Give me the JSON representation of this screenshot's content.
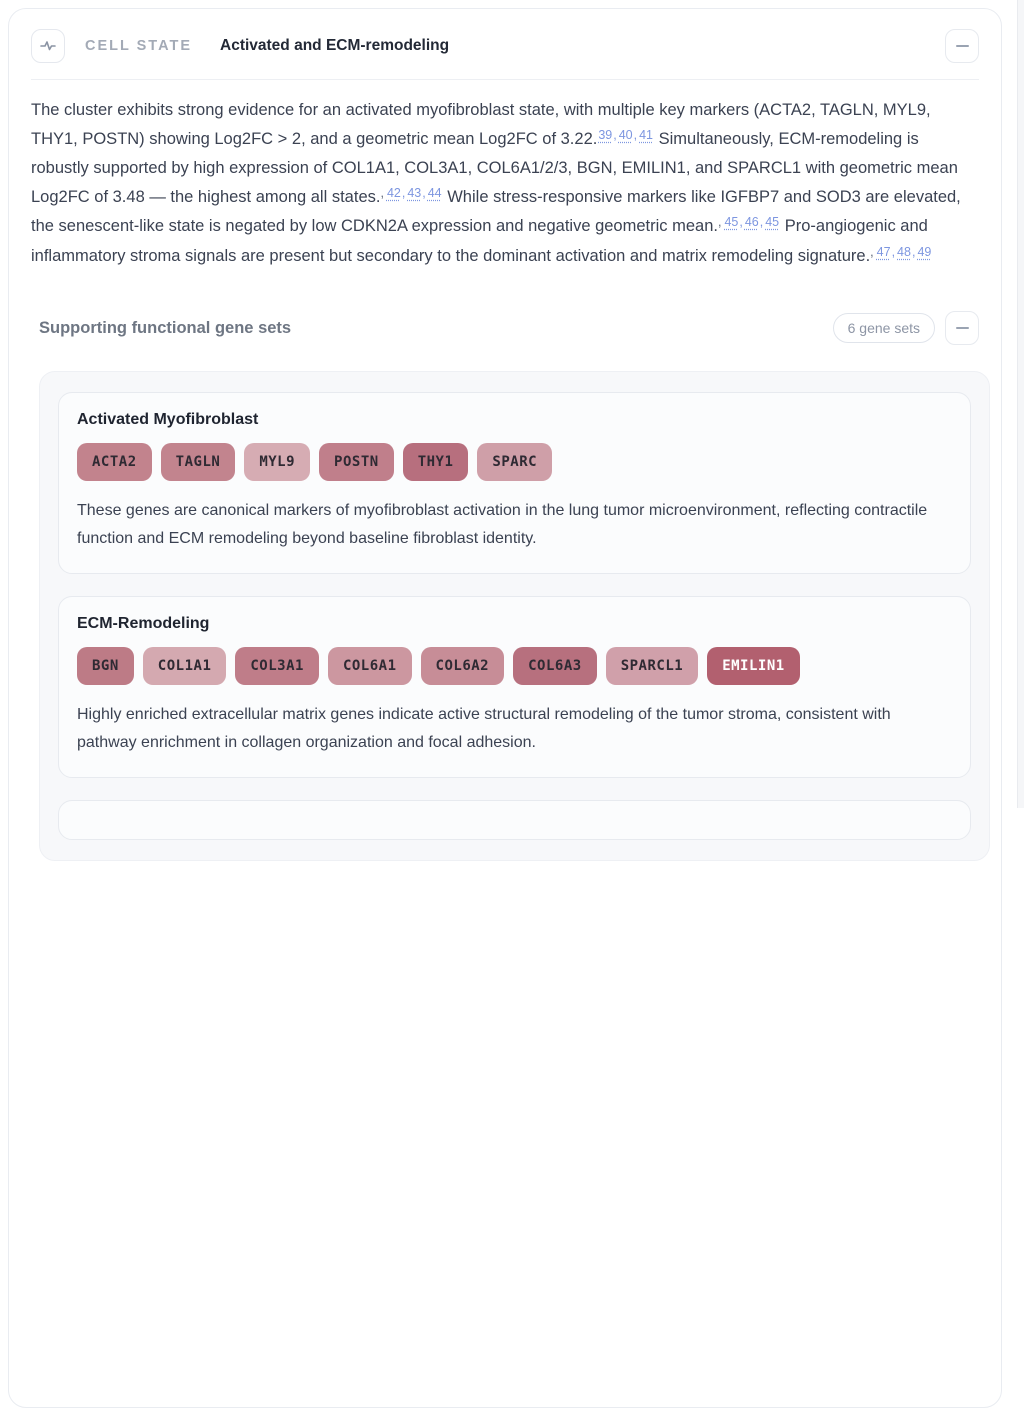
{
  "header": {
    "label": "CELL STATE",
    "title": "Activated and ECM-remodeling"
  },
  "summary": {
    "segments": [
      {
        "text": "The cluster exhibits strong evidence for an activated myofibroblast state, with multiple key markers (ACTA2, TAGLN, MYL9, THY1, POSTN) showing Log2FC > 2, and a geometric mean Log2FC of 3.22.",
        "leading_mark": false,
        "citations": [
          "39",
          "40",
          "41"
        ]
      },
      {
        "text": " Simultaneously, ECM-remodeling is robustly supported by high expression of COL1A1, COL3A1, COL6A1/2/3, BGN, EMILIN1, and SPARCL1 with geometric mean Log2FC of 3.48 — the highest among all states.",
        "leading_mark": true,
        "citations": [
          "42",
          "43",
          "44"
        ]
      },
      {
        "text": " While stress-responsive markers like IGFBP7 and SOD3 are elevated, the senescent-like state is negated by low CDKN2A expression and negative geometric mean.",
        "leading_mark": true,
        "citations": [
          "45",
          "46",
          "45"
        ]
      },
      {
        "text": " Pro-angiogenic and inflammatory stroma signals are present but secondary to the dominant activation and matrix remodeling signature.",
        "leading_mark": true,
        "citations": [
          "47",
          "48",
          "49"
        ]
      }
    ]
  },
  "gene_sets_section": {
    "title": "Supporting functional gene sets",
    "badge": "6 gene sets"
  },
  "gene_sets": [
    {
      "title": "Activated Myofibroblast",
      "genes": [
        {
          "name": "ACTA2",
          "bg": "#c2838d",
          "fg": "#2f2a33"
        },
        {
          "name": "TAGLN",
          "bg": "#c2848e",
          "fg": "#2f2a33"
        },
        {
          "name": "MYL9",
          "bg": "#d6acb3",
          "fg": "#2f2a33"
        },
        {
          "name": "POSTN",
          "bg": "#c07f8b",
          "fg": "#2f2a33"
        },
        {
          "name": "THY1",
          "bg": "#b76f7e",
          "fg": "#2f2a33"
        },
        {
          "name": "SPARC",
          "bg": "#cf9fa8",
          "fg": "#2f2a33"
        }
      ],
      "description": "These genes are canonical markers of myofibroblast activation in the lung tumor microenvironment, reflecting contractile function and ECM remodeling beyond baseline fibroblast identity.",
      "partial": false
    },
    {
      "title": "ECM-Remodeling",
      "genes": [
        {
          "name": "BGN",
          "bg": "#bd7b86",
          "fg": "#2f2a33"
        },
        {
          "name": "COL1A1",
          "bg": "#d4a9b0",
          "fg": "#2f2a33"
        },
        {
          "name": "COL3A1",
          "bg": "#bf7d89",
          "fg": "#2f2a33"
        },
        {
          "name": "COL6A1",
          "bg": "#cc97a0",
          "fg": "#2f2a33"
        },
        {
          "name": "COL6A2",
          "bg": "#c78d97",
          "fg": "#2f2a33"
        },
        {
          "name": "COL6A3",
          "bg": "#b7707e",
          "fg": "#2f2a33"
        },
        {
          "name": "SPARCL1",
          "bg": "#d0a0aa",
          "fg": "#2f2a33"
        },
        {
          "name": "EMILIN1",
          "bg": "#b2606f",
          "fg": "#ffffff"
        }
      ],
      "description": "Highly enriched extracellular matrix genes indicate active structural remodeling of the tumor stroma, consistent with pathway enrichment in collagen organization and focal adhesion.",
      "partial": false
    },
    {
      "title": "",
      "genes": [],
      "description": "",
      "partial": true
    }
  ],
  "icons": {
    "activity_icon": "pulse-waveform",
    "collapse_icon": "minus"
  },
  "colors": {
    "citation_blue": "#7d96e0",
    "section_gray": "#6e7683",
    "card_bg": "#fbfcfd",
    "container_bg": "#f7f8fa"
  }
}
